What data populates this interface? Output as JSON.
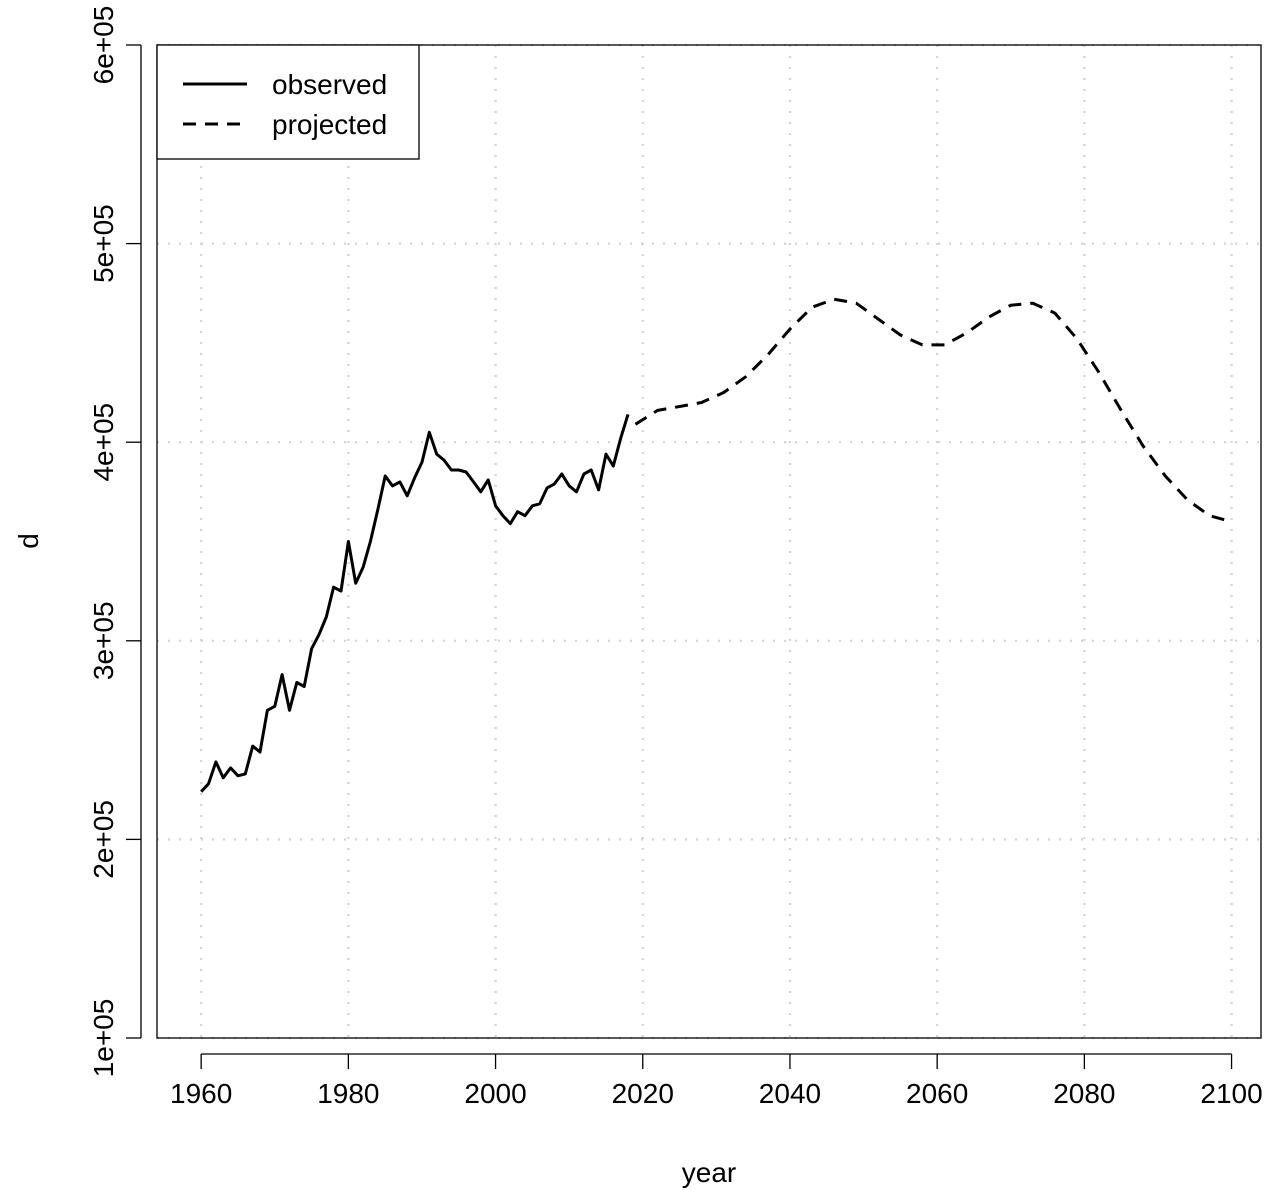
{
  "chart_data": {
    "type": "line",
    "title": "",
    "xlabel": "year",
    "ylabel": "d",
    "xlim": [
      1954,
      2104
    ],
    "ylim": [
      100000,
      600000
    ],
    "x_ticks": [
      1960,
      1980,
      2000,
      2020,
      2040,
      2060,
      2080,
      2100
    ],
    "x_tick_labels": [
      "1960",
      "1980",
      "2000",
      "2020",
      "2040",
      "2060",
      "2080",
      "2100"
    ],
    "y_ticks": [
      100000,
      200000,
      300000,
      400000,
      500000,
      600000
    ],
    "y_tick_labels": [
      "1e+05",
      "2e+05",
      "3e+05",
      "4e+05",
      "5e+05",
      "6e+05"
    ],
    "grid": true,
    "legend": {
      "position": "top-left",
      "entries": [
        {
          "label": "observed",
          "style": "solid"
        },
        {
          "label": "projected",
          "style": "dashed"
        }
      ]
    },
    "series": [
      {
        "name": "observed",
        "style": "solid",
        "color": "#000000",
        "x": [
          1960,
          1961,
          1962,
          1963,
          1964,
          1965,
          1966,
          1967,
          1968,
          1969,
          1970,
          1971,
          1972,
          1973,
          1974,
          1975,
          1976,
          1977,
          1978,
          1979,
          1980,
          1981,
          1982,
          1983,
          1984,
          1985,
          1986,
          1987,
          1988,
          1989,
          1990,
          1991,
          1992,
          1993,
          1994,
          1995,
          1996,
          1997,
          1998,
          1999,
          2000,
          2001,
          2002,
          2003,
          2004,
          2005,
          2006,
          2007,
          2008,
          2009,
          2010,
          2011,
          2012,
          2013,
          2014,
          2015,
          2016,
          2017,
          2018
        ],
        "y": [
          224000,
          228000,
          239000,
          231000,
          236000,
          232000,
          233000,
          247000,
          244000,
          265000,
          267000,
          283000,
          265000,
          279000,
          277000,
          296000,
          303000,
          312000,
          327000,
          325000,
          350000,
          329000,
          337000,
          350000,
          366000,
          383000,
          378000,
          380000,
          373000,
          382000,
          390000,
          405000,
          394000,
          391000,
          386000,
          386000,
          385000,
          380000,
          375000,
          381000,
          368000,
          363000,
          359000,
          365000,
          363000,
          368000,
          369000,
          377000,
          379000,
          384000,
          378000,
          375000,
          384000,
          386000,
          376000,
          394000,
          388000,
          402000,
          414000
        ]
      },
      {
        "name": "projected",
        "style": "dashed",
        "color": "#000000",
        "x": [
          2019,
          2022,
          2025,
          2028,
          2031,
          2034,
          2037,
          2040,
          2043,
          2046,
          2049,
          2052,
          2055,
          2058,
          2061,
          2064,
          2067,
          2070,
          2073,
          2076,
          2079,
          2082,
          2085,
          2088,
          2091,
          2094,
          2097,
          2099
        ],
        "y": [
          409000,
          416000,
          418000,
          420000,
          425000,
          433000,
          444000,
          457000,
          468000,
          472000,
          470000,
          462000,
          454000,
          449000,
          449000,
          455000,
          463000,
          469000,
          470000,
          465000,
          452000,
          435000,
          416000,
          398000,
          383000,
          371000,
          363000,
          361000
        ]
      }
    ]
  }
}
